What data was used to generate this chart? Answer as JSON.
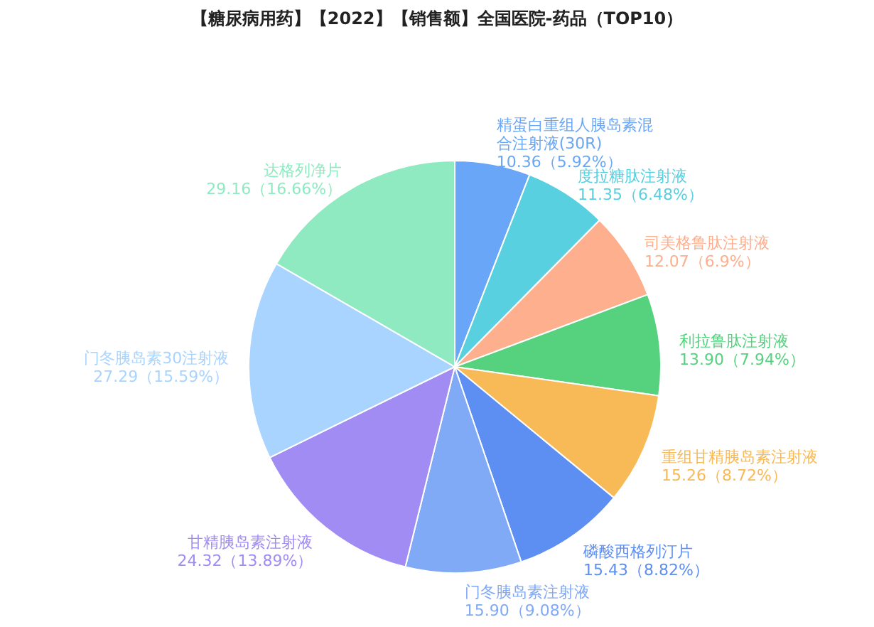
{
  "chart_data": {
    "type": "pie",
    "title": "【糖尿病用药】【2022】【销售额】全国医院-药品（TOP10）",
    "categories": [
      "精蛋白重组人胰岛素混合注射液(30R)",
      "度拉糖肽注射液",
      "司美格鲁肽注射液",
      "利拉鲁肽注射液",
      "重组甘精胰岛素注射液",
      "磷酸西格列汀片",
      "门冬胰岛素注射液",
      "甘精胰岛素注射液",
      "门冬胰岛素30注射液",
      "达格列净片"
    ],
    "values": [
      10.36,
      11.35,
      12.07,
      13.9,
      15.26,
      15.43,
      15.9,
      24.32,
      27.29,
      29.16
    ],
    "value_labels": [
      "10.36（5.92%）",
      "11.35（6.48%）",
      "12.07（6.9%）",
      "13.90（7.94%）",
      "15.26（8.72%）",
      "15.43（8.82%）",
      "15.90（9.08%）",
      "24.32（13.89%）",
      "27.29（15.59%）",
      "29.16（16.66%）"
    ],
    "colors": [
      "#6aa6f8",
      "#58d0df",
      "#fdaf8e",
      "#56d27f",
      "#f8b957",
      "#5d8ef2",
      "#80a9f6",
      "#a18cf3",
      "#a9d4ff",
      "#8feac1"
    ],
    "legend": false
  }
}
